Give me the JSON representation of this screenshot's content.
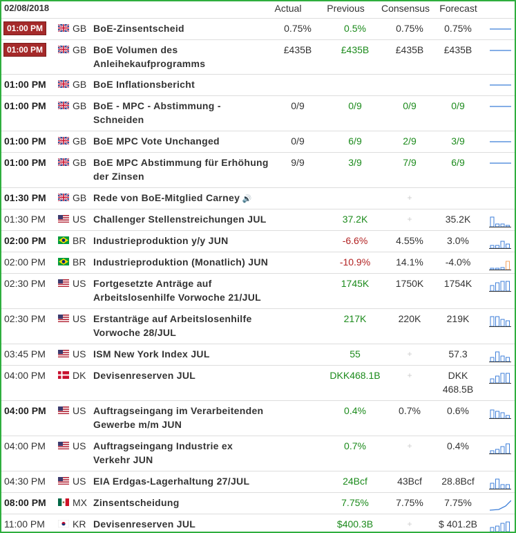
{
  "header": {
    "date": "02/08/2018",
    "actual": "Actual",
    "previous": "Previous",
    "consensus": "Consensus",
    "forecast": "Forecast"
  },
  "rows": [
    {
      "time": "01:00 PM",
      "style": "badge",
      "country": "GB",
      "flag": "gb",
      "name": [
        "BoE-Zinsentscheid"
      ],
      "name_bold": true,
      "actual": "0.75%",
      "previous": "0.5%",
      "prev_color": "green",
      "consensus": "0.75%",
      "forecast": "0.75%",
      "chart": "line"
    },
    {
      "time": "01:00 PM",
      "style": "badge",
      "country": "GB",
      "flag": "gb",
      "name": [
        "BoE Volumen des",
        "Anleihekaufprogramms"
      ],
      "name_bold": true,
      "actual": "£435B",
      "previous": "£435B",
      "prev_color": "green",
      "consensus": "£435B",
      "forecast": "£435B",
      "chart": "line"
    },
    {
      "time": "01:00 PM",
      "style": "bold",
      "country": "GB",
      "flag": "gb",
      "name": [
        "BoE Inflationsbericht"
      ],
      "name_bold": true,
      "actual": "",
      "previous": "",
      "prev_color": "",
      "consensus": "",
      "forecast": "",
      "chart": "line"
    },
    {
      "time": "01:00 PM",
      "style": "bold",
      "country": "GB",
      "flag": "gb",
      "name": [
        "BoE - MPC - Abstimmung -",
        "Schneiden"
      ],
      "name_bold": true,
      "actual": "0/9",
      "previous": "0/9",
      "prev_color": "green",
      "consensus": "0/9",
      "cons_color": "green",
      "forecast": "0/9",
      "fore_color": "green",
      "chart": "line"
    },
    {
      "time": "01:00 PM",
      "style": "bold",
      "country": "GB",
      "flag": "gb",
      "name": [
        "BoE MPC Vote Unchanged"
      ],
      "name_bold": true,
      "actual": "0/9",
      "previous": "6/9",
      "prev_color": "green",
      "consensus": "2/9",
      "cons_color": "green",
      "forecast": "3/9",
      "fore_color": "green",
      "chart": "line"
    },
    {
      "time": "01:00 PM",
      "style": "bold",
      "country": "GB",
      "flag": "gb",
      "name": [
        "BoE MPC Abstimmung für Erhöhung",
        "der Zinsen"
      ],
      "name_bold": true,
      "actual": "9/9",
      "previous": "3/9",
      "prev_color": "green",
      "consensus": "7/9",
      "cons_color": "green",
      "forecast": "6/9",
      "fore_color": "green",
      "chart": "line"
    },
    {
      "time": "01:30 PM",
      "style": "bold",
      "country": "GB",
      "flag": "gb",
      "name": [
        "Rede von BoE-Mitglied Carney"
      ],
      "name_bold": true,
      "sound": "🔊",
      "actual": "",
      "previous": "",
      "prev_color": "",
      "consensus": "+",
      "forecast": "",
      "chart": "none"
    },
    {
      "time": "01:30 PM",
      "style": "normal",
      "country": "US",
      "flag": "us",
      "name": [
        "Challenger Stellenstreichungen JUL"
      ],
      "name_bold": true,
      "actual": "",
      "previous": "37.2K",
      "prev_color": "green",
      "consensus": "+",
      "forecast": "35.2K",
      "chart": "bars",
      "bars": [
        14,
        4,
        4,
        2
      ]
    },
    {
      "time": "02:00 PM",
      "style": "bold",
      "country": "BR",
      "flag": "br",
      "name": [
        "Industrieproduktion y/y JUN"
      ],
      "name_bold": true,
      "actual": "",
      "previous": "-6.6%",
      "prev_color": "red",
      "consensus": "4.55%",
      "forecast": "3.0%",
      "chart": "bars",
      "bars": [
        4,
        4,
        10,
        6
      ]
    },
    {
      "time": "02:00 PM",
      "style": "normal",
      "country": "BR",
      "flag": "br",
      "name": [
        "Industrieproduktion (Monatlich) JUN"
      ],
      "name_bold": true,
      "actual": "",
      "previous": "-10.9%",
      "prev_color": "red",
      "consensus": "14.1%",
      "forecast": "-4.0%",
      "chart": "bars",
      "bars": [
        2,
        2,
        3,
        12
      ]
    },
    {
      "time": "02:30 PM",
      "style": "normal",
      "country": "US",
      "flag": "us",
      "name": [
        "Fortgesetzte Anträge auf",
        "Arbeitslosenhilfe Vorwoche 21/JUL"
      ],
      "name_bold": true,
      "actual": "",
      "previous": "1745K",
      "prev_color": "green",
      "consensus": "1750K",
      "forecast": "1754K",
      "chart": "bars",
      "bars": [
        8,
        12,
        14,
        14
      ]
    },
    {
      "time": "02:30 PM",
      "style": "normal",
      "country": "US",
      "flag": "us",
      "name": [
        "Erstanträge auf Arbeitslosenhilfe",
        "Vorwoche 28/JUL"
      ],
      "name_bold": true,
      "actual": "",
      "previous": "217K",
      "prev_color": "green",
      "consensus": "220K",
      "forecast": "219K",
      "chart": "bars",
      "bars": [
        14,
        14,
        10,
        8
      ]
    },
    {
      "time": "03:45 PM",
      "style": "normal",
      "country": "US",
      "flag": "us",
      "name": [
        "ISM New York Index JUL"
      ],
      "name_bold": true,
      "actual": "",
      "previous": "55",
      "prev_color": "green",
      "consensus": "+",
      "forecast": "57.3",
      "chart": "bars",
      "bars": [
        6,
        14,
        8,
        6
      ]
    },
    {
      "time": "04:00 PM",
      "style": "normal",
      "country": "DK",
      "flag": "dk",
      "name": [
        "Devisenreserven JUL"
      ],
      "name_bold": true,
      "actual": "",
      "previous": "DKK468.1B",
      "prev_color": "green",
      "consensus": "+",
      "forecast": "DKK 468.5B",
      "chart": "bars",
      "bars": [
        6,
        10,
        14,
        14
      ]
    },
    {
      "time": "04:00 PM",
      "style": "bold",
      "country": "US",
      "flag": "us",
      "name": [
        "Auftragseingang im Verarbeitenden",
        "Gewerbe m/m JUN"
      ],
      "name_bold": true,
      "actual": "",
      "previous": "0.4%",
      "prev_color": "green",
      "consensus": "0.7%",
      "forecast": "0.6%",
      "chart": "bars",
      "bars": [
        12,
        10,
        8,
        4
      ]
    },
    {
      "time": "04:00 PM",
      "style": "normal",
      "country": "US",
      "flag": "us",
      "name": [
        "Auftragseingang Industrie ex",
        "Verkehr JUN"
      ],
      "name_bold": true,
      "actual": "",
      "previous": "0.7%",
      "prev_color": "green",
      "consensus": "+",
      "forecast": "0.4%",
      "chart": "bars",
      "bars": [
        4,
        6,
        10,
        14
      ]
    },
    {
      "time": "04:30 PM",
      "style": "normal",
      "country": "US",
      "flag": "us",
      "name": [
        "EIA Erdgas-Lagerhaltung 27/JUL"
      ],
      "name_bold": true,
      "actual": "",
      "previous": "24Bcf",
      "prev_color": "green",
      "consensus": "43Bcf",
      "forecast": "28.8Bcf",
      "chart": "bars",
      "bars": [
        8,
        14,
        6,
        6
      ]
    },
    {
      "time": "08:00 PM",
      "style": "bold",
      "country": "MX",
      "flag": "mx",
      "name": [
        "Zinsentscheidung"
      ],
      "name_bold": true,
      "actual": "",
      "previous": "7.75%",
      "prev_color": "green",
      "consensus": "7.75%",
      "forecast": "7.75%",
      "chart": "rise"
    },
    {
      "time": "11:00 PM",
      "style": "normal",
      "country": "KR",
      "flag": "kr",
      "name": [
        "Devisenreserven JUL"
      ],
      "name_bold": true,
      "actual": "",
      "previous": "$400.3B",
      "prev_color": "green",
      "consensus": "+",
      "forecast": "$ 401.2B",
      "chart": "bars",
      "bars": [
        6,
        8,
        12,
        14
      ]
    }
  ]
}
